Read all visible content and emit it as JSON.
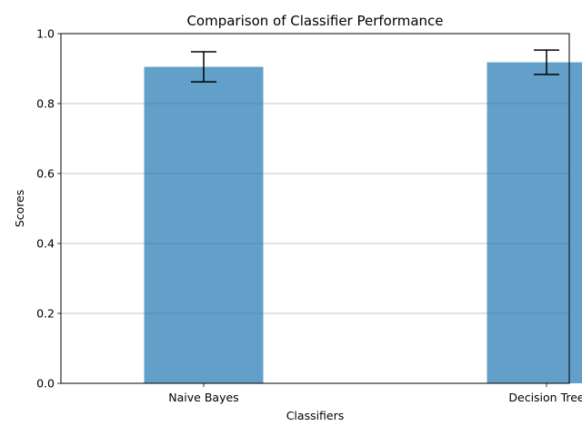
{
  "chart_data": {
    "type": "bar",
    "title": "Comparison of Classifier Performance",
    "xlabel": "Classifiers",
    "ylabel": "Scores",
    "categories": [
      "Naive Bayes",
      "Decision Tree"
    ],
    "values": [
      0.905,
      0.918
    ],
    "errors": [
      0.043,
      0.035
    ],
    "ylim": [
      0,
      1.0
    ],
    "yticks": [
      0.0,
      0.2,
      0.4,
      0.6,
      0.8,
      1.0
    ],
    "ytick_labels": [
      "0.0",
      "0.2",
      "0.4",
      "0.6",
      "0.8",
      "1.0"
    ],
    "grid": "y",
    "bar_color": "#1f77b4",
    "bar_alpha": 0.7,
    "error_color": "#000000"
  }
}
